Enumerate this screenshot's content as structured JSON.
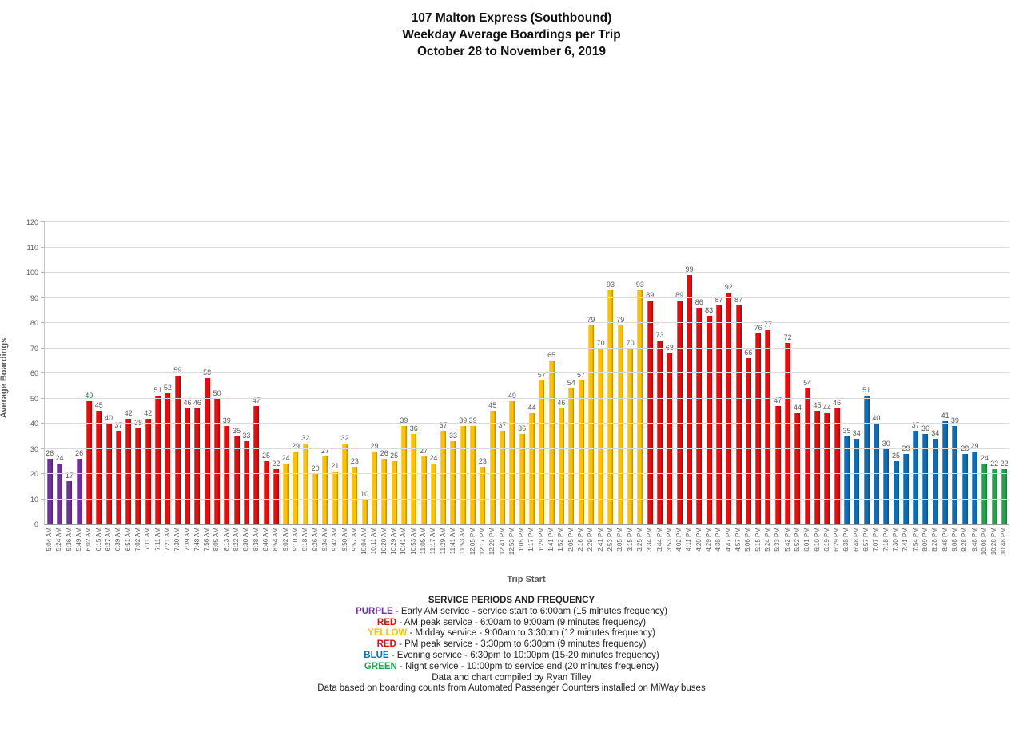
{
  "title": {
    "line1": "107 Malton Express (Southbound)",
    "line2": "Weekday Average Boardings per Trip",
    "line3": "October 28 to November 6, 2019"
  },
  "chart_data": {
    "type": "bar",
    "title": "107 Malton Express (Southbound) — Weekday Average Boardings per Trip — October 28 to November 6, 2019",
    "xlabel": "Trip Start",
    "ylabel": "Average Boardings",
    "ylim": [
      0,
      120
    ],
    "ytick_step": 10,
    "grid": true,
    "legend_position": "bottom",
    "period_colors": {
      "early_am": "#7030A0",
      "am_peak": "#E80C0C",
      "midday": "#FFC000",
      "pm_peak": "#E80C0C",
      "evening": "#0F6CB6",
      "night": "#23A44A"
    },
    "bars": [
      {
        "time": "5:04 AM",
        "value": 26,
        "period": "early_am"
      },
      {
        "time": "5:24 AM",
        "value": 24,
        "period": "early_am"
      },
      {
        "time": "5:36 AM",
        "value": 17,
        "period": "early_am"
      },
      {
        "time": "5:49 AM",
        "value": 26,
        "period": "early_am"
      },
      {
        "time": "6:02 AM",
        "value": 49,
        "period": "am_peak"
      },
      {
        "time": "6:15 AM",
        "value": 45,
        "period": "am_peak"
      },
      {
        "time": "6:27 AM",
        "value": 40,
        "period": "am_peak"
      },
      {
        "time": "6:39 AM",
        "value": 37,
        "period": "am_peak"
      },
      {
        "time": "6:51 AM",
        "value": 42,
        "period": "am_peak"
      },
      {
        "time": "7:02 AM",
        "value": 38,
        "period": "am_peak"
      },
      {
        "time": "7:11 AM",
        "value": 42,
        "period": "am_peak"
      },
      {
        "time": "7:11 AM",
        "value": 51,
        "period": "am_peak"
      },
      {
        "time": "7:21 AM",
        "value": 52,
        "period": "am_peak"
      },
      {
        "time": "7:30 AM",
        "value": 59,
        "period": "am_peak"
      },
      {
        "time": "7:39 AM",
        "value": 46,
        "period": "am_peak"
      },
      {
        "time": "7:48 AM",
        "value": 46,
        "period": "am_peak"
      },
      {
        "time": "7:56 AM",
        "value": 58,
        "period": "am_peak"
      },
      {
        "time": "8:05 AM",
        "value": 50,
        "period": "am_peak"
      },
      {
        "time": "8:13 AM",
        "value": 39,
        "period": "am_peak"
      },
      {
        "time": "8:22 AM",
        "value": 35,
        "period": "am_peak"
      },
      {
        "time": "8:30 AM",
        "value": 33,
        "period": "am_peak"
      },
      {
        "time": "8:38 AM",
        "value": 47,
        "period": "am_peak"
      },
      {
        "time": "8:46 AM",
        "value": 25,
        "period": "am_peak"
      },
      {
        "time": "8:54 AM",
        "value": 22,
        "period": "am_peak"
      },
      {
        "time": "9:02 AM",
        "value": 24,
        "period": "midday"
      },
      {
        "time": "9:10 AM",
        "value": 29,
        "period": "midday"
      },
      {
        "time": "9:18 AM",
        "value": 32,
        "period": "midday"
      },
      {
        "time": "9:26 AM",
        "value": 20,
        "period": "midday"
      },
      {
        "time": "9:34 AM",
        "value": 27,
        "period": "midday"
      },
      {
        "time": "9:42 AM",
        "value": 21,
        "period": "midday"
      },
      {
        "time": "9:50 AM",
        "value": 32,
        "period": "midday"
      },
      {
        "time": "9:57 AM",
        "value": 23,
        "period": "midday"
      },
      {
        "time": "10:04 AM",
        "value": 10,
        "period": "midday"
      },
      {
        "time": "10:11 AM",
        "value": 29,
        "period": "midday"
      },
      {
        "time": "10:20 AM",
        "value": 26,
        "period": "midday"
      },
      {
        "time": "10:29 AM",
        "value": 25,
        "period": "midday"
      },
      {
        "time": "10:41 AM",
        "value": 39,
        "period": "midday"
      },
      {
        "time": "10:53 AM",
        "value": 36,
        "period": "midday"
      },
      {
        "time": "11:05 AM",
        "value": 27,
        "period": "midday"
      },
      {
        "time": "11:17 AM",
        "value": 24,
        "period": "midday"
      },
      {
        "time": "11:29 AM",
        "value": 37,
        "period": "midday"
      },
      {
        "time": "11:41 AM",
        "value": 33,
        "period": "midday"
      },
      {
        "time": "11:53 AM",
        "value": 39,
        "period": "midday"
      },
      {
        "time": "12:05 PM",
        "value": 39,
        "period": "midday"
      },
      {
        "time": "12:17 PM",
        "value": 23,
        "period": "midday"
      },
      {
        "time": "12:29 PM",
        "value": 45,
        "period": "midday"
      },
      {
        "time": "12:41 PM",
        "value": 37,
        "period": "midday"
      },
      {
        "time": "12:53 PM",
        "value": 49,
        "period": "midday"
      },
      {
        "time": "1:05 PM",
        "value": 36,
        "period": "midday"
      },
      {
        "time": "1:17 PM",
        "value": 44,
        "period": "midday"
      },
      {
        "time": "1:29 PM",
        "value": 57,
        "period": "midday"
      },
      {
        "time": "1:41 PM",
        "value": 65,
        "period": "midday"
      },
      {
        "time": "1:52 PM",
        "value": 46,
        "period": "midday"
      },
      {
        "time": "2:05 PM",
        "value": 54,
        "period": "midday"
      },
      {
        "time": "2:16 PM",
        "value": 57,
        "period": "midday"
      },
      {
        "time": "2:29 PM",
        "value": 79,
        "period": "midday"
      },
      {
        "time": "2:41 PM",
        "value": 70,
        "period": "midday"
      },
      {
        "time": "2:53 PM",
        "value": 93,
        "period": "midday"
      },
      {
        "time": "3:05 PM",
        "value": 79,
        "period": "midday"
      },
      {
        "time": "3:15 PM",
        "value": 70,
        "period": "midday"
      },
      {
        "time": "3:25 PM",
        "value": 93,
        "period": "midday"
      },
      {
        "time": "3:34 PM",
        "value": 89,
        "period": "pm_peak"
      },
      {
        "time": "3:44 PM",
        "value": 73,
        "period": "pm_peak"
      },
      {
        "time": "3:53 PM",
        "value": 68,
        "period": "pm_peak"
      },
      {
        "time": "4:02 PM",
        "value": 89,
        "period": "pm_peak"
      },
      {
        "time": "4:11 PM",
        "value": 99,
        "period": "pm_peak"
      },
      {
        "time": "4:20 PM",
        "value": 86,
        "period": "pm_peak"
      },
      {
        "time": "4:29 PM",
        "value": 83,
        "period": "pm_peak"
      },
      {
        "time": "4:38 PM",
        "value": 87,
        "period": "pm_peak"
      },
      {
        "time": "4:47 PM",
        "value": 92,
        "period": "pm_peak"
      },
      {
        "time": "4:57 PM",
        "value": 87,
        "period": "pm_peak"
      },
      {
        "time": "5:06 PM",
        "value": 66,
        "period": "pm_peak"
      },
      {
        "time": "5:15 PM",
        "value": 76,
        "period": "pm_peak"
      },
      {
        "time": "5:24 PM",
        "value": 77,
        "period": "pm_peak"
      },
      {
        "time": "5:33 PM",
        "value": 47,
        "period": "pm_peak"
      },
      {
        "time": "5:42 PM",
        "value": 72,
        "period": "pm_peak"
      },
      {
        "time": "5:52 PM",
        "value": 44,
        "period": "pm_peak"
      },
      {
        "time": "6:01 PM",
        "value": 54,
        "period": "pm_peak"
      },
      {
        "time": "6:10 PM",
        "value": 45,
        "period": "pm_peak"
      },
      {
        "time": "6:19 PM",
        "value": 44,
        "period": "pm_peak"
      },
      {
        "time": "6:29 PM",
        "value": 46,
        "period": "pm_peak"
      },
      {
        "time": "6:38 PM",
        "value": 35,
        "period": "evening"
      },
      {
        "time": "6:48 PM",
        "value": 34,
        "period": "evening"
      },
      {
        "time": "6:57 PM",
        "value": 51,
        "period": "evening"
      },
      {
        "time": "7:07 PM",
        "value": 40,
        "period": "evening"
      },
      {
        "time": "7:18 PM",
        "value": 30,
        "period": "evening"
      },
      {
        "time": "7:30 PM",
        "value": 25,
        "period": "evening"
      },
      {
        "time": "7:41 PM",
        "value": 28,
        "period": "evening"
      },
      {
        "time": "7:54 PM",
        "value": 37,
        "period": "evening"
      },
      {
        "time": "8:09 PM",
        "value": 36,
        "period": "evening"
      },
      {
        "time": "8:28 PM",
        "value": 34,
        "period": "evening"
      },
      {
        "time": "8:48 PM",
        "value": 41,
        "period": "evening"
      },
      {
        "time": "9:08 PM",
        "value": 39,
        "period": "evening"
      },
      {
        "time": "9:28 PM",
        "value": 28,
        "period": "evening"
      },
      {
        "time": "9:48 PM",
        "value": 29,
        "period": "evening"
      },
      {
        "time": "10:08 PM",
        "value": 24,
        "period": "night"
      },
      {
        "time": "10:28 PM",
        "value": 22,
        "period": "night"
      },
      {
        "time": "10:48 PM",
        "value": 22,
        "period": "night"
      }
    ]
  },
  "legend": {
    "heading": "SERVICE PERIODS AND FREQUENCY",
    "items": [
      {
        "key": "PURPLE",
        "color": "#7030A0",
        "text": "- Early AM service - service start to 6:00am (15 minutes frequency)"
      },
      {
        "key": "RED",
        "color": "#E80C0C",
        "text": "- AM peak service - 6:00am to 9:00am  (9 minutes frequency)"
      },
      {
        "key": "YELLOW",
        "color": "#FFC000",
        "text": "- Midday service - 9:00am to 3:30pm (12 minutes frequency)"
      },
      {
        "key": "RED",
        "color": "#E80C0C",
        "text": "- PM peak service - 3:30pm to 6:30pm (9 minutes frequency)"
      },
      {
        "key": "BLUE",
        "color": "#0F6CB6",
        "text": "- Evening service - 6:30pm to 10:00pm (15-20 minutes frequency)"
      },
      {
        "key": "GREEN",
        "color": "#23A44A",
        "text": "- Night service - 10:00pm to service end (20 minutes frequency)"
      }
    ],
    "footer1": "Data and chart compiled by Ryan Tilley",
    "footer2": "Data based on boarding counts from Automated Passenger Counters installed on MiWay buses"
  }
}
